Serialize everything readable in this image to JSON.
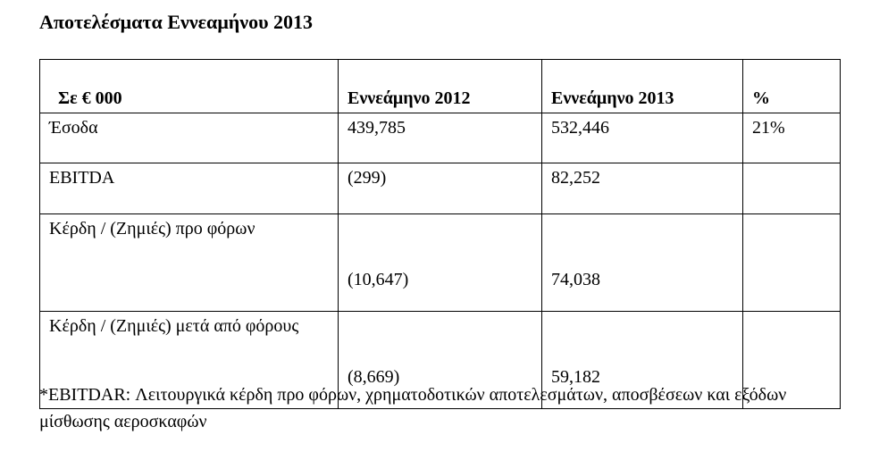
{
  "title": "Αποτελέσματα Εννεαμήνου 2013",
  "table": {
    "header": [
      "Σε € 000",
      "Εννεάμηνο 2012",
      "Εννεάμηνο 2013",
      "%"
    ],
    "rows": [
      [
        "Έσοδα",
        "439,785",
        "532,446",
        "21%"
      ],
      [
        "EBITDA",
        "(299)",
        "82,252"
      ],
      [
        "Κέρδη / (Ζημιές) προ φόρων",
        "(10,647)",
        "74,038"
      ],
      [
        "Κέρδη / (Ζημιές) μετά από φόρους",
        "(8,669)",
        "59,182"
      ]
    ]
  },
  "footnote": "*EBITDAR: Λειτουργικά κέρδη προ φόρων, χρηματοδοτικών αποτελεσμάτων, αποσβέσεων και εξόδων μίσθωσης αεροσκαφών"
}
